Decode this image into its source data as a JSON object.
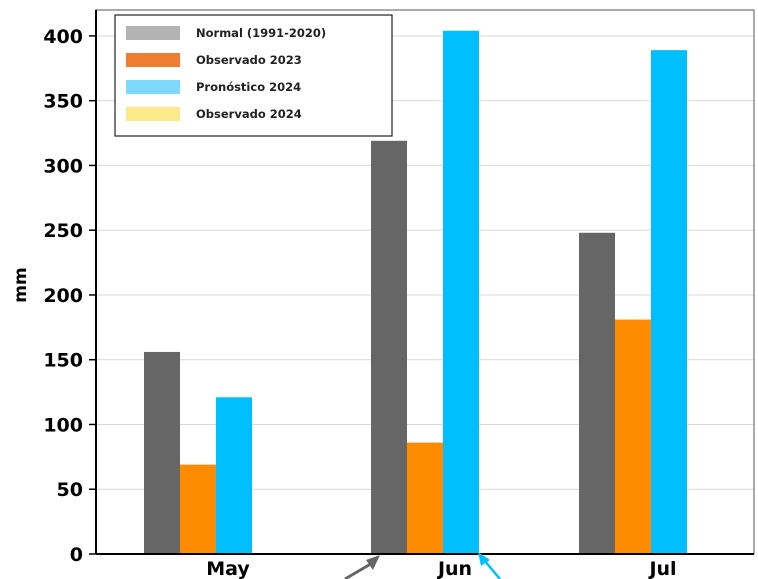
{
  "chart_data": {
    "type": "bar",
    "categories": [
      "May",
      "Jun",
      "Jul"
    ],
    "series": [
      {
        "name": "Normal (1991-2020)",
        "color": "#666666",
        "legend_color": "#b3b3b3",
        "values": [
          156,
          319,
          248
        ]
      },
      {
        "name": "Observado 2023",
        "color": "#ff8c00",
        "legend_color": "#ef7d32",
        "values": [
          69,
          86,
          181
        ]
      },
      {
        "name": "Pronóstico 2024",
        "color": "#00bfff",
        "legend_color": "#7fd9ff",
        "values": [
          121,
          404,
          389
        ]
      },
      {
        "name": "Observado 2024",
        "color": "#ffd966",
        "legend_color": "#fbe98a",
        "values": [
          null,
          null,
          null
        ]
      }
    ],
    "ylabel": "mm",
    "xlabel": "",
    "ylim": [
      0,
      420
    ],
    "yticks": [
      0,
      50,
      100,
      150,
      200,
      250,
      300,
      350,
      400
    ],
    "grid": true,
    "legend_position": "top-left"
  }
}
